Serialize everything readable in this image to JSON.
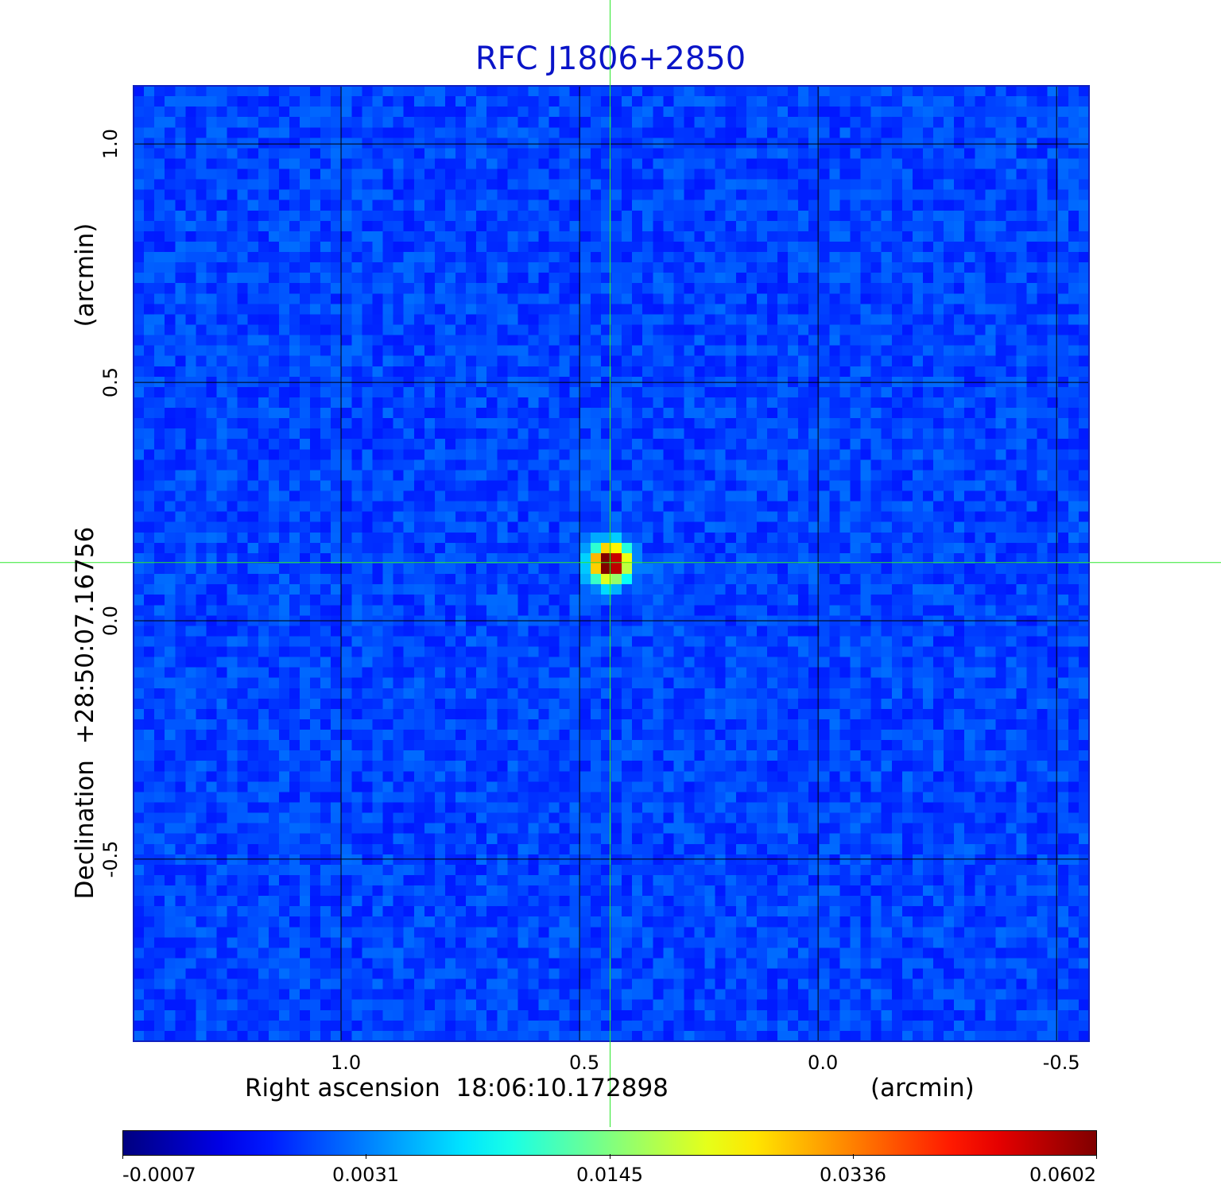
{
  "chart_data": {
    "type": "heatmap",
    "title": "RFC J1806+2850",
    "xlabel": "Right ascension  18:06:10.172898",
    "xunit": "(arcmin)",
    "ylabel": "Declination  +28:50:07.16756",
    "yunit": "(arcmin)",
    "x_ticks": [
      "1.0",
      "0.5",
      "0.0",
      "-0.5"
    ],
    "y_ticks": [
      "1.0",
      "0.5",
      "0.0",
      "-0.5"
    ],
    "x_tick_values": [
      1.0,
      0.5,
      0.0,
      -0.5
    ],
    "y_tick_values": [
      1.0,
      0.5,
      0.0,
      -0.5
    ],
    "xlim": [
      1.435,
      -0.568
    ],
    "ylim": [
      -0.882,
      1.122
    ],
    "grid": true,
    "colormap": "jet",
    "colorbar_ticks": [
      "-0.0007",
      "0.0031",
      "0.0145",
      "0.0336",
      "0.0602"
    ],
    "colorbar_range": [
      -0.0007,
      0.0602
    ],
    "source": {
      "x": 0.436,
      "y": 0.122,
      "peak": 0.0602
    },
    "crosshair": {
      "x": 0.436,
      "y": 0.122
    },
    "crosshair_color": "#2ee82e",
    "title_color": "#0a14c8"
  }
}
